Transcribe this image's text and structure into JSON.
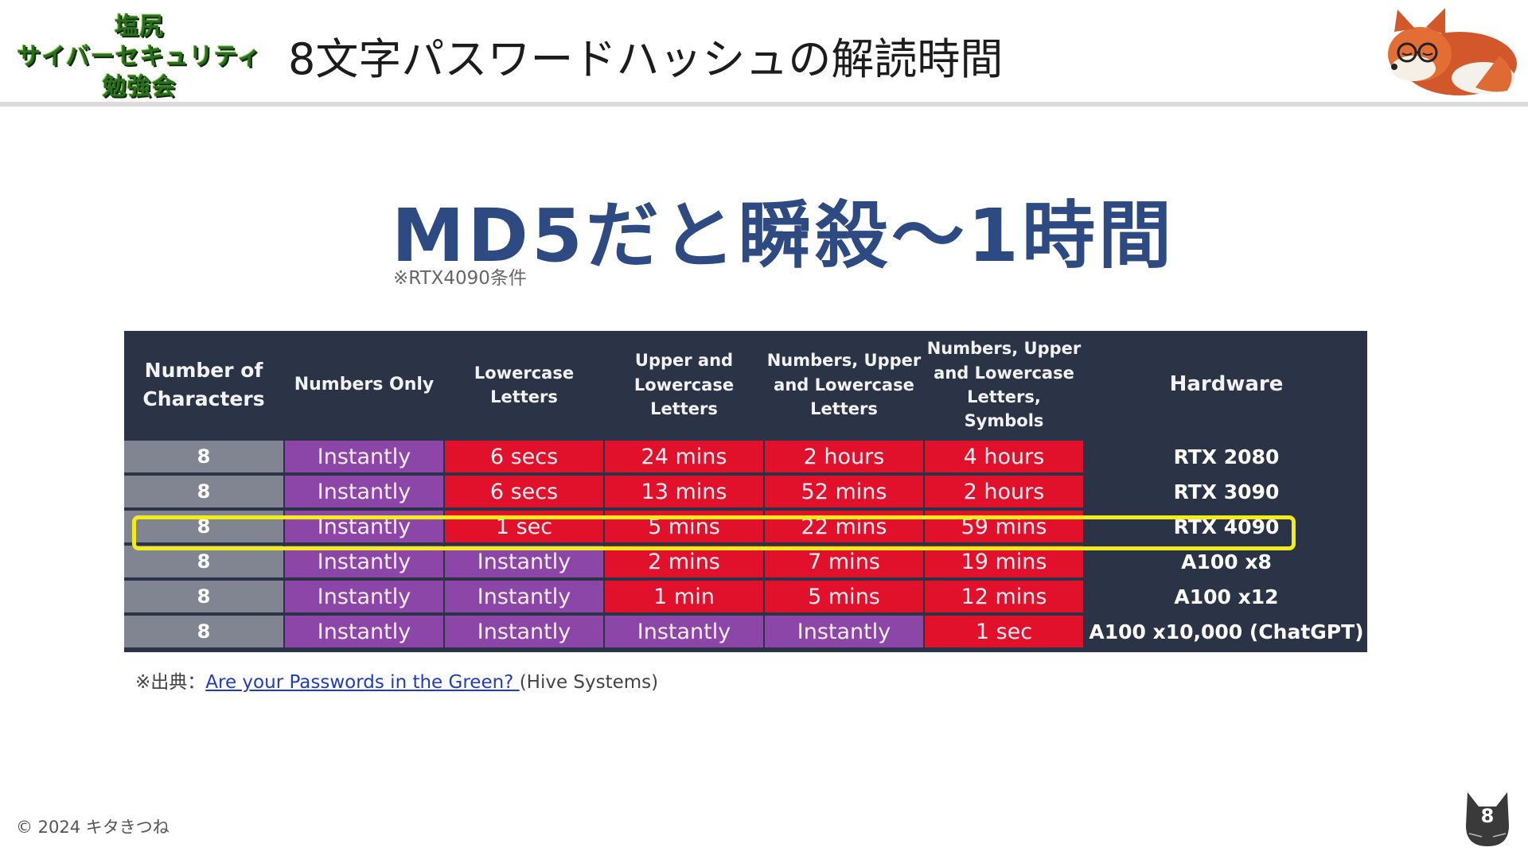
{
  "header": {
    "logo_lines": [
      "塩尻",
      "サイバーセキュリティ",
      "勉強会"
    ],
    "title": "8文字パスワードハッシュの解読時間"
  },
  "main": {
    "headline": "MD5だと瞬殺〜1時間",
    "note": "※RTX4090条件"
  },
  "table": {
    "headers": [
      "Number of\nCharacters",
      "Numbers Only",
      "Lowercase\nLetters",
      "Upper and\nLowercase\nLetters",
      "Numbers, Upper\nand Lowercase\nLetters",
      "Numbers, Upper\nand Lowercase\nLetters, Symbols",
      "Hardware"
    ],
    "rows": [
      {
        "chars": "8",
        "cells": [
          "Instantly",
          "6 secs",
          "24 mins",
          "2 hours",
          "4 hours"
        ],
        "colors": [
          "p",
          "r",
          "r",
          "r",
          "r"
        ],
        "hardware": "RTX 2080"
      },
      {
        "chars": "8",
        "cells": [
          "Instantly",
          "6 secs",
          "13 mins",
          "52 mins",
          "2 hours"
        ],
        "colors": [
          "p",
          "r",
          "r",
          "r",
          "r"
        ],
        "hardware": "RTX 3090"
      },
      {
        "chars": "8",
        "cells": [
          "Instantly",
          "1 sec",
          "5 mins",
          "22 mins",
          "59 mins"
        ],
        "colors": [
          "p",
          "r",
          "r",
          "r",
          "r"
        ],
        "hardware": "RTX 4090"
      },
      {
        "chars": "8",
        "cells": [
          "Instantly",
          "Instantly",
          "2 mins",
          "7 mins",
          "19 mins"
        ],
        "colors": [
          "p",
          "p",
          "r",
          "r",
          "r"
        ],
        "hardware": "A100 x8"
      },
      {
        "chars": "8",
        "cells": [
          "Instantly",
          "Instantly",
          "1 min",
          "5 mins",
          "12 mins"
        ],
        "colors": [
          "p",
          "p",
          "r",
          "r",
          "r"
        ],
        "hardware": "A100 x12"
      },
      {
        "chars": "8",
        "cells": [
          "Instantly",
          "Instantly",
          "Instantly",
          "Instantly",
          "1 sec"
        ],
        "colors": [
          "p",
          "p",
          "p",
          "p",
          "r"
        ],
        "hardware": "A100 x10,000 (ChatGPT)"
      }
    ]
  },
  "source": {
    "prefix": "※出典：",
    "link_text": "Are your Passwords in the Green? ",
    "suffix": "(Hive Systems)"
  },
  "footer": {
    "copyright": "© 2024 キタきつね",
    "page_number": "8"
  },
  "colors": {
    "headline": "#2d4b82",
    "table_bg": "#2b3447",
    "purple": "#8b46a8",
    "red": "#e1102b",
    "gray": "#808591",
    "highlight": "#f3ec1b"
  }
}
